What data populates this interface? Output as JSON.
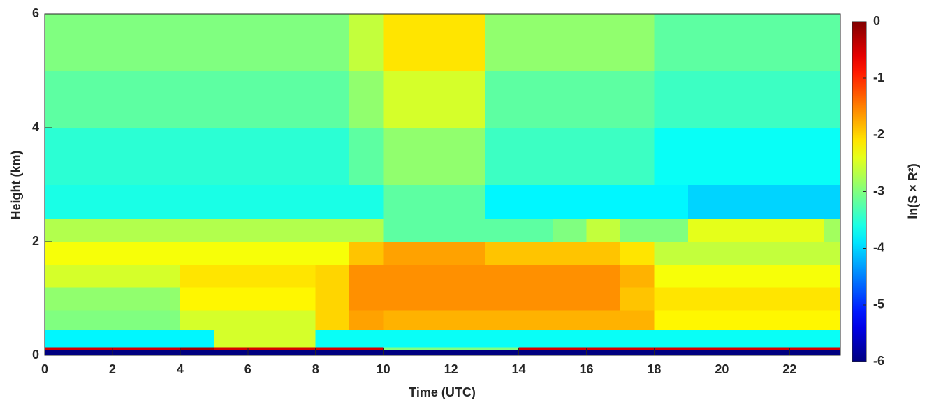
{
  "chart_data": {
    "type": "heatmap",
    "x_label": "Time (UTC)",
    "y_label": "Height (km)",
    "colorbar_label": "ln(S × R²)",
    "colormap": "jet",
    "xbins": [
      0,
      1,
      2,
      3,
      4,
      5,
      6,
      7,
      8,
      9,
      10,
      11,
      12,
      13,
      14,
      15,
      16,
      17,
      18,
      19,
      20,
      21,
      22,
      23,
      23.5
    ],
    "ybins": [
      0,
      0.1,
      0.15,
      0.45,
      0.8,
      1.2,
      1.6,
      2.0,
      2.4,
      3,
      4,
      5,
      6
    ],
    "z": [
      [
        -6,
        -6,
        -6,
        -6,
        -6,
        -6,
        -6,
        -6,
        -6,
        -6,
        -6,
        -6,
        -6,
        -6,
        -6,
        -6,
        -6,
        -6,
        -6,
        -6,
        -6,
        -6,
        -6,
        -6
      ],
      [
        -0.5,
        -0.5,
        -0.5,
        -0.5,
        -0.2,
        -0.5,
        -0.5,
        -0.5,
        -0.5,
        -0.5,
        -3,
        -3,
        -3,
        -3,
        -0.5,
        -0.5,
        -0.5,
        -0.5,
        -0.5,
        -0.5,
        -0.5,
        -0.5,
        -0.5,
        -0.5
      ],
      [
        -3.8,
        -3.8,
        -3.8,
        -3.8,
        -3.8,
        -2.5,
        -2.5,
        -2.5,
        -3.7,
        -3.7,
        -3.7,
        -3.7,
        -3.7,
        -3.7,
        -3.7,
        -3.7,
        -3.7,
        -3.7,
        -3.7,
        -3.7,
        -3.7,
        -3.7,
        -3.7,
        -3.7
      ],
      [
        -3,
        -3,
        -3,
        -3,
        -2.5,
        -2.5,
        -2.5,
        -2.5,
        -2,
        -1.7,
        -1.8,
        -1.8,
        -1.8,
        -1.8,
        -1.8,
        -1.8,
        -1.8,
        -1.8,
        -2.2,
        -2.2,
        -2.2,
        -2.2,
        -2.2,
        -2.2
      ],
      [
        -2.9,
        -2.9,
        -2.9,
        -2.9,
        -2.2,
        -2.2,
        -2.2,
        -2.2,
        -2,
        -1.6,
        -1.6,
        -1.6,
        -1.6,
        -1.6,
        -1.6,
        -1.6,
        -1.6,
        -1.9,
        -2.1,
        -2.1,
        -2.1,
        -2.1,
        -2.1,
        -2.1
      ],
      [
        -2.5,
        -2.5,
        -2.5,
        -2.5,
        -2.1,
        -2.1,
        -2.1,
        -2.1,
        -2,
        -1.6,
        -1.6,
        -1.6,
        -1.6,
        -1.6,
        -1.6,
        -1.6,
        -1.6,
        -1.8,
        -2.3,
        -2.3,
        -2.3,
        -2.3,
        -2.3,
        -2.3
      ],
      [
        -2.3,
        -2.3,
        -2.3,
        -2.3,
        -2.3,
        -2.3,
        -2.3,
        -2.3,
        -2.3,
        -1.9,
        -1.7,
        -1.7,
        -1.7,
        -1.9,
        -1.9,
        -1.9,
        -1.9,
        -2.1,
        -2.6,
        -2.6,
        -2.6,
        -2.6,
        -2.6,
        -2.6
      ],
      [
        -2.7,
        -2.7,
        -2.7,
        -2.7,
        -2.7,
        -2.7,
        -2.7,
        -2.7,
        -2.7,
        -2.7,
        -3.2,
        -3.2,
        -3.2,
        -3.2,
        -3.2,
        -3,
        -2.6,
        -3,
        -3,
        -2.4,
        -2.4,
        -2.4,
        -2.4,
        -2.8
      ],
      [
        -3.6,
        -3.6,
        -3.6,
        -3.6,
        -3.6,
        -3.6,
        -3.6,
        -3.6,
        -3.6,
        -3.6,
        -3.2,
        -3.2,
        -3.2,
        -3.8,
        -3.8,
        -3.8,
        -3.8,
        -3.8,
        -3.8,
        -4,
        -4,
        -4,
        -4,
        -4
      ],
      [
        -3.5,
        -3.5,
        -3.5,
        -3.5,
        -3.5,
        -3.5,
        -3.5,
        -3.5,
        -3.5,
        -3.2,
        -2.9,
        -2.9,
        -2.9,
        -3.4,
        -3.4,
        -3.4,
        -3.4,
        -3.4,
        -3.7,
        -3.7,
        -3.7,
        -3.7,
        -3.7,
        -3.7
      ],
      [
        -3.2,
        -3.2,
        -3.2,
        -3.2,
        -3.2,
        -3.2,
        -3.2,
        -3.2,
        -3.2,
        -2.9,
        -2.5,
        -2.5,
        -2.5,
        -3.2,
        -3.2,
        -3.2,
        -3.2,
        -3.2,
        -3.4,
        -3.4,
        -3.4,
        -3.4,
        -3.4,
        -3.4
      ],
      [
        -3,
        -3,
        -3,
        -3,
        -3,
        -3,
        -3,
        -3,
        -3,
        -2.6,
        -2.1,
        -2.1,
        -2.1,
        -2.9,
        -2.9,
        -2.9,
        -2.9,
        -2.9,
        -3.2,
        -3.2,
        -3.2,
        -3.2,
        -3.2,
        -3.2
      ]
    ],
    "xlim": [
      0,
      23.5
    ],
    "xticks": [
      0,
      2,
      4,
      6,
      8,
      10,
      12,
      14,
      16,
      18,
      20,
      22
    ],
    "ylim": [
      0,
      6
    ],
    "yticks": [
      0,
      2,
      4,
      6
    ],
    "zlim": [
      -6,
      0
    ],
    "zticks": [
      -6,
      -5,
      -4,
      -3,
      -2,
      -1,
      0
    ]
  }
}
